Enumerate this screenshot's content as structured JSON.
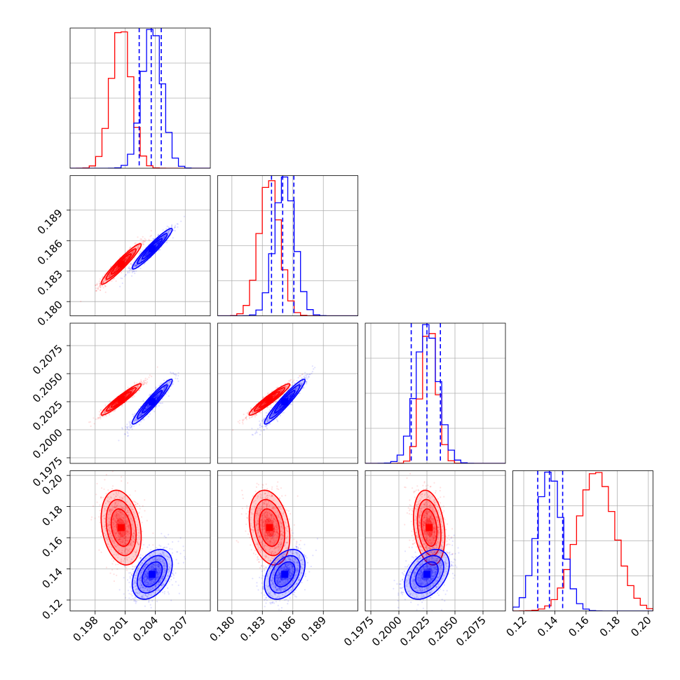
{
  "chart_data": {
    "type": "corner",
    "title": "",
    "colors": {
      "red": "#ff0000",
      "blue": "#0000ff"
    },
    "grid": true,
    "parameters": [
      {
        "range": [
          0.1955,
          0.2095
        ],
        "ticks": [
          0.198,
          0.201,
          0.204,
          0.207
        ],
        "tick_labels": [
          "0.198",
          "0.201",
          "0.204",
          "0.207"
        ]
      },
      {
        "range": [
          0.1786,
          0.1924
        ],
        "ticks": [
          0.18,
          0.183,
          0.186,
          0.189
        ],
        "tick_labels": [
          "0.180",
          "0.183",
          "0.186",
          "0.189"
        ]
      },
      {
        "range": [
          0.197,
          0.2095
        ],
        "ticks": [
          0.1975,
          0.2,
          0.2025,
          0.205,
          0.2075
        ],
        "tick_labels": [
          "0.1975",
          "0.2000",
          "0.2025",
          "0.2050",
          "0.2075"
        ]
      },
      {
        "range": [
          0.113,
          0.203
        ],
        "ticks": [
          0.12,
          0.14,
          0.16,
          0.18,
          0.2
        ],
        "tick_labels": [
          "0.12",
          "0.14",
          "0.16",
          "0.18",
          "0.20"
        ]
      }
    ],
    "series": [
      {
        "color": "red",
        "mean": [
          0.2006,
          0.1837,
          0.2027,
          0.1665
        ],
        "std": [
          0.001,
          0.001,
          0.0007,
          0.012
        ],
        "corr": [
          [
            1,
            0.95,
            0.95,
            -0.25
          ],
          [
            0.95,
            1,
            0.95,
            -0.25
          ],
          [
            0.95,
            0.95,
            1,
            -0.25
          ],
          [
            -0.25,
            -0.25,
            -0.25,
            1
          ]
        ]
      },
      {
        "color": "blue",
        "mean": [
          0.2037,
          0.1852,
          0.2025,
          0.1365
        ],
        "std": [
          0.001,
          0.001,
          0.001,
          0.008
        ],
        "corr": [
          [
            1,
            0.95,
            0.95,
            0.4
          ],
          [
            0.95,
            1,
            0.95,
            0.4
          ],
          [
            0.95,
            0.95,
            1,
            0.4
          ],
          [
            0.4,
            0.4,
            0.4,
            1
          ]
        ]
      }
    ],
    "quantile_lines": {
      "color": "blue",
      "values": [
        [
          0.2024,
          0.2036,
          0.2046
        ],
        [
          0.1839,
          0.185,
          0.1861
        ],
        [
          0.2011,
          0.2025,
          0.2037
        ],
        [
          0.129,
          0.1365,
          0.145
        ]
      ]
    }
  }
}
